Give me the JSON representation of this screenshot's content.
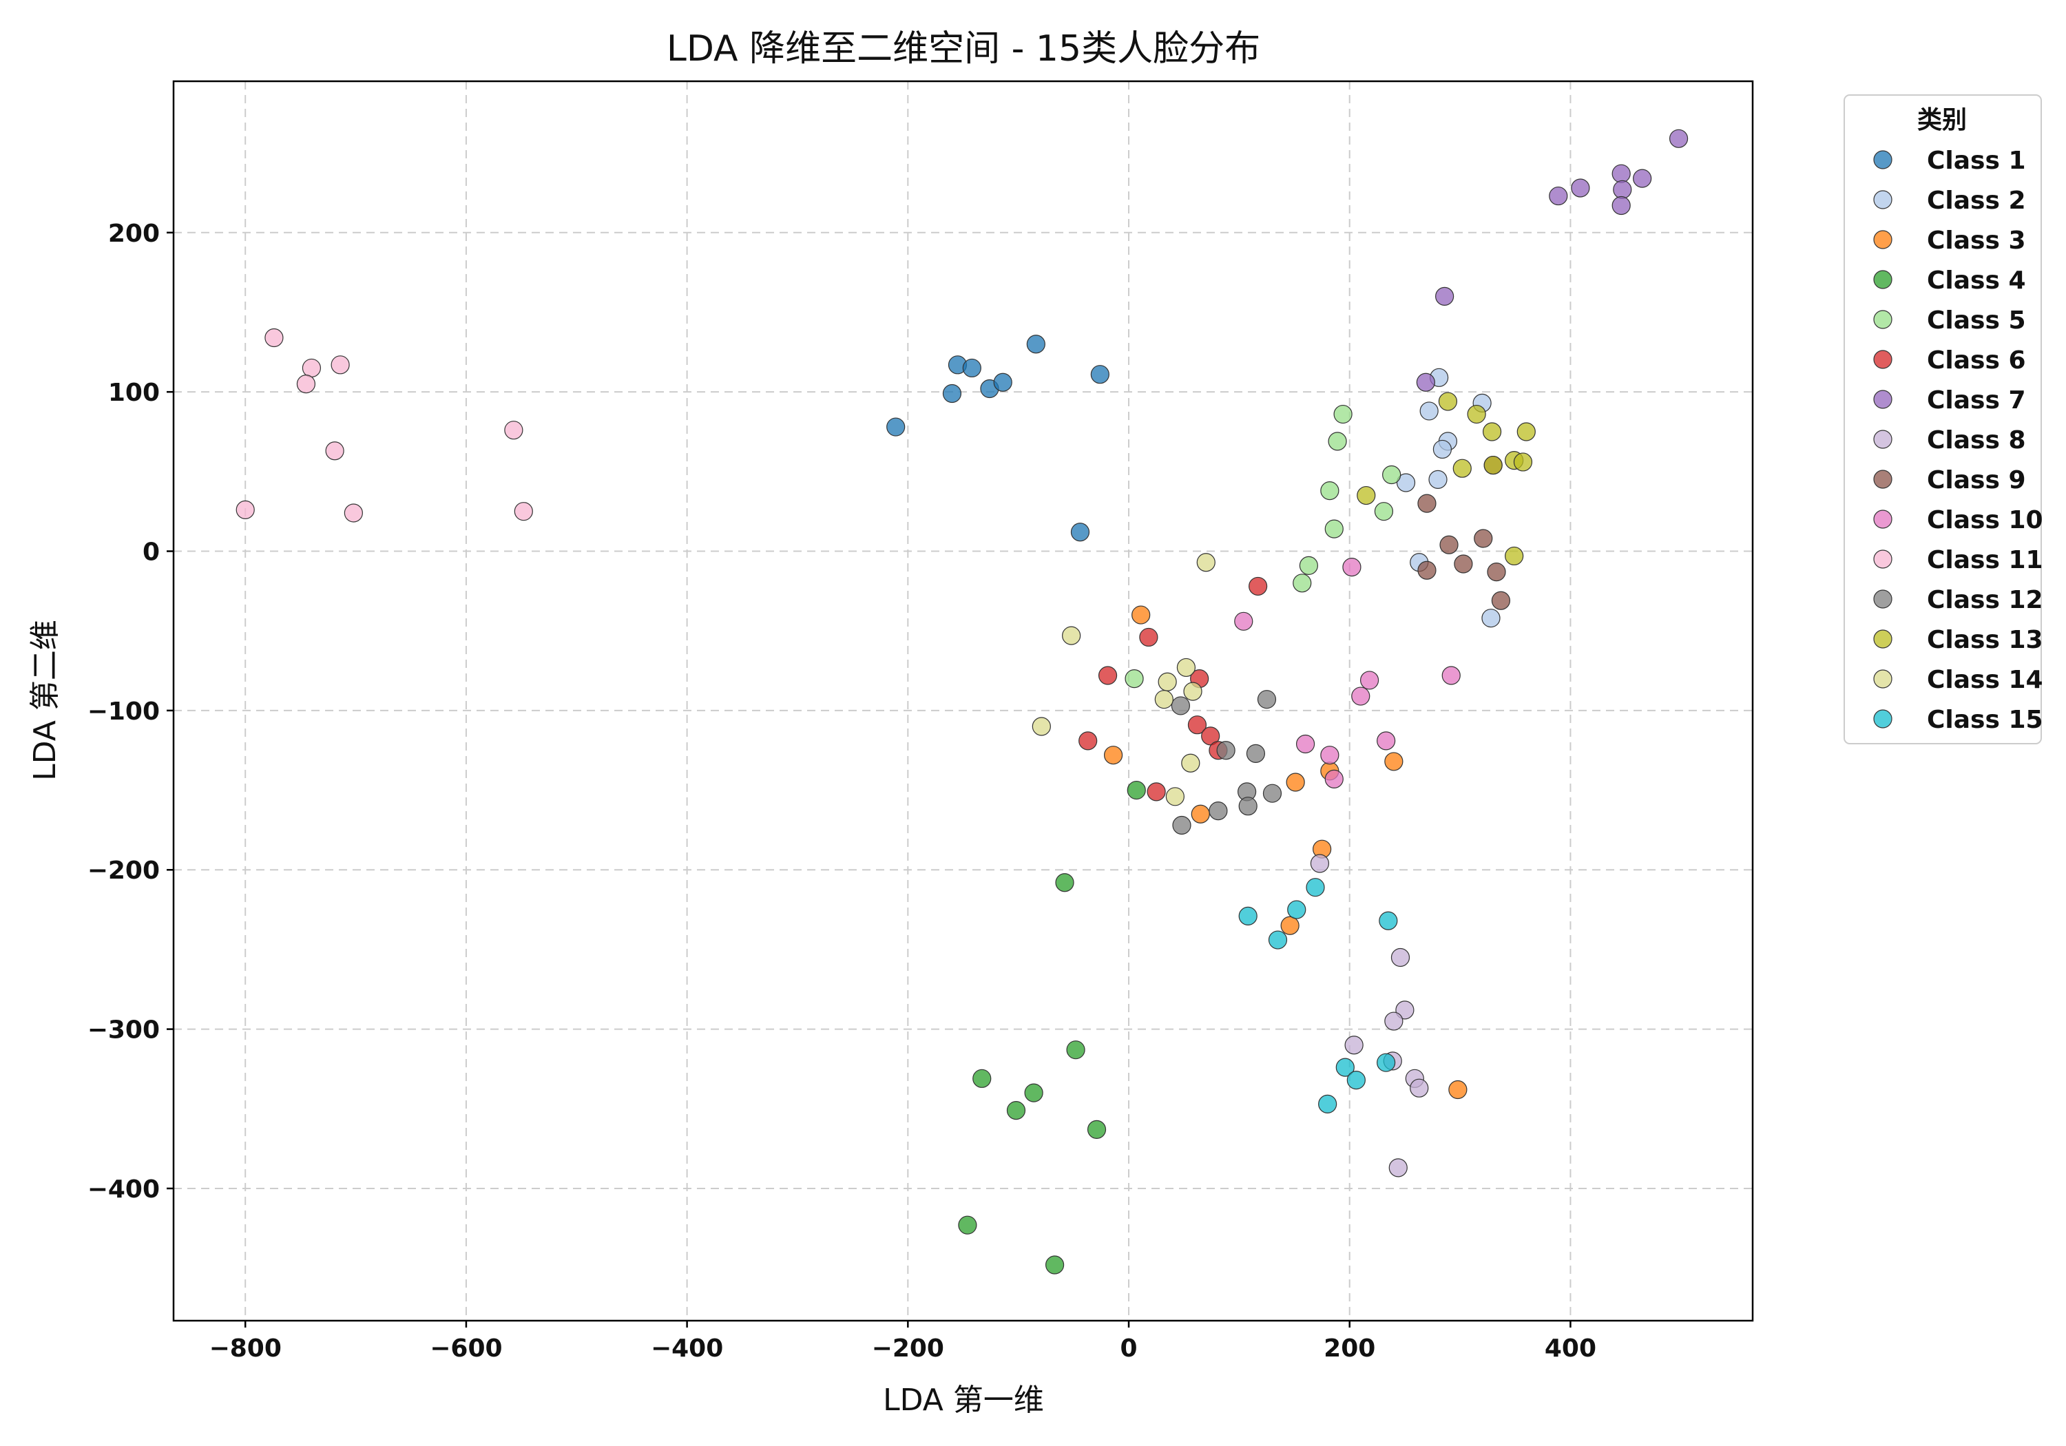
{
  "chart_data": {
    "type": "scatter",
    "title": "LDA 降维至二维空间 - 15类人脸分布",
    "xlabel": "LDA 第一维",
    "ylabel": "LDA 第二维",
    "xlim": [
      -865,
      565
    ],
    "ylim": [
      -483,
      295
    ],
    "xticks": [
      -800,
      -600,
      -400,
      -200,
      0,
      200,
      400
    ],
    "yticks": [
      -400,
      -300,
      -200,
      -100,
      0,
      100,
      200
    ],
    "xtick_labels": [
      "−800",
      "−600",
      "−400",
      "−200",
      "0",
      "200",
      "400"
    ],
    "ytick_labels": [
      "−400",
      "−300",
      "−200",
      "−100",
      "0",
      "100",
      "200"
    ],
    "grid": true,
    "legend_title": "类别",
    "legend_position": "outside-right-top",
    "series": [
      {
        "name": "Class 1",
        "color": "#1f77b4",
        "points": [
          [
            -211,
            78
          ],
          [
            -160,
            99
          ],
          [
            -155,
            117
          ],
          [
            -142,
            115
          ],
          [
            -126,
            102
          ],
          [
            -114,
            106
          ],
          [
            -84,
            130
          ],
          [
            -26,
            111
          ],
          [
            -44,
            12
          ]
        ]
      },
      {
        "name": "Class 2",
        "color": "#aec7e8",
        "points": [
          [
            281,
            109
          ],
          [
            272,
            88
          ],
          [
            320,
            93
          ],
          [
            289,
            69
          ],
          [
            284,
            64
          ],
          [
            251,
            43
          ],
          [
            280,
            45
          ],
          [
            263,
            -7
          ],
          [
            328,
            -42
          ]
        ]
      },
      {
        "name": "Class 3",
        "color": "#ff7f0e",
        "points": [
          [
            11,
            -40
          ],
          [
            -14,
            -128
          ],
          [
            65,
            -165
          ],
          [
            151,
            -145
          ],
          [
            182,
            -138
          ],
          [
            240,
            -132
          ],
          [
            175,
            -187
          ],
          [
            146,
            -235
          ],
          [
            298,
            -338
          ]
        ]
      },
      {
        "name": "Class 4",
        "color": "#2ca02c",
        "points": [
          [
            7,
            -150
          ],
          [
            -58,
            -208
          ],
          [
            -133,
            -331
          ],
          [
            -86,
            -340
          ],
          [
            -102,
            -351
          ],
          [
            -48,
            -313
          ],
          [
            -29,
            -363
          ],
          [
            -146,
            -423
          ],
          [
            -67,
            -448
          ]
        ]
      },
      {
        "name": "Class 5",
        "color": "#98df8a",
        "points": [
          [
            194,
            86
          ],
          [
            189,
            69
          ],
          [
            238,
            48
          ],
          [
            182,
            38
          ],
          [
            231,
            25
          ],
          [
            186,
            14
          ],
          [
            163,
            -9
          ],
          [
            157,
            -20
          ],
          [
            5,
            -80
          ]
        ]
      },
      {
        "name": "Class 6",
        "color": "#d62728",
        "points": [
          [
            117,
            -22
          ],
          [
            18,
            -54
          ],
          [
            -19,
            -78
          ],
          [
            64,
            -80
          ],
          [
            62,
            -109
          ],
          [
            74,
            -116
          ],
          [
            81,
            -125
          ],
          [
            -37,
            -119
          ],
          [
            25,
            -151
          ]
        ]
      },
      {
        "name": "Class 7",
        "color": "#9467bd",
        "points": [
          [
            498,
            259
          ],
          [
            446,
            237
          ],
          [
            465,
            234
          ],
          [
            409,
            228
          ],
          [
            447,
            227
          ],
          [
            389,
            223
          ],
          [
            446,
            217
          ],
          [
            286,
            160
          ],
          [
            269,
            106
          ]
        ]
      },
      {
        "name": "Class 8",
        "color": "#c5b0d5",
        "points": [
          [
            173,
            -196
          ],
          [
            246,
            -255
          ],
          [
            250,
            -288
          ],
          [
            240,
            -295
          ],
          [
            204,
            -310
          ],
          [
            239,
            -320
          ],
          [
            259,
            -331
          ],
          [
            263,
            -337
          ],
          [
            244,
            -387
          ]
        ]
      },
      {
        "name": "Class 9",
        "color": "#8c564b",
        "points": [
          [
            330,
            54
          ],
          [
            270,
            30
          ],
          [
            290,
            4
          ],
          [
            321,
            8
          ],
          [
            270,
            -12
          ],
          [
            303,
            -8
          ],
          [
            333,
            -13
          ],
          [
            337,
            -31
          ]
        ]
      },
      {
        "name": "Class 10",
        "color": "#e377c2",
        "points": [
          [
            202,
            -10
          ],
          [
            104,
            -44
          ],
          [
            218,
            -81
          ],
          [
            210,
            -91
          ],
          [
            292,
            -78
          ],
          [
            160,
            -121
          ],
          [
            182,
            -128
          ],
          [
            186,
            -143
          ],
          [
            233,
            -119
          ]
        ]
      },
      {
        "name": "Class 11",
        "color": "#f7b6d2",
        "points": [
          [
            -774,
            134
          ],
          [
            -740,
            115
          ],
          [
            -714,
            117
          ],
          [
            -745,
            105
          ],
          [
            -557,
            76
          ],
          [
            -719,
            63
          ],
          [
            -800,
            26
          ],
          [
            -702,
            24
          ],
          [
            -548,
            25
          ]
        ]
      },
      {
        "name": "Class 12",
        "color": "#7f7f7f",
        "points": [
          [
            125,
            -93
          ],
          [
            47,
            -97
          ],
          [
            88,
            -125
          ],
          [
            115,
            -127
          ],
          [
            107,
            -151
          ],
          [
            130,
            -152
          ],
          [
            108,
            -160
          ],
          [
            81,
            -163
          ],
          [
            48,
            -172
          ]
        ]
      },
      {
        "name": "Class 13",
        "color": "#bcbd22",
        "points": [
          [
            289,
            94
          ],
          [
            315,
            86
          ],
          [
            329,
            75
          ],
          [
            360,
            75
          ],
          [
            349,
            57
          ],
          [
            357,
            56
          ],
          [
            330,
            54
          ],
          [
            302,
            52
          ],
          [
            215,
            35
          ],
          [
            349,
            -3
          ]
        ]
      },
      {
        "name": "Class 14",
        "color": "#dbdb8d",
        "points": [
          [
            70,
            -7
          ],
          [
            -52,
            -53
          ],
          [
            52,
            -73
          ],
          [
            35,
            -82
          ],
          [
            58,
            -88
          ],
          [
            32,
            -93
          ],
          [
            -79,
            -110
          ],
          [
            56,
            -133
          ],
          [
            42,
            -154
          ]
        ]
      },
      {
        "name": "Class 15",
        "color": "#17becf",
        "points": [
          [
            169,
            -211
          ],
          [
            152,
            -225
          ],
          [
            108,
            -229
          ],
          [
            135,
            -244
          ],
          [
            235,
            -232
          ],
          [
            196,
            -324
          ],
          [
            233,
            -321
          ],
          [
            206,
            -332
          ],
          [
            180,
            -347
          ]
        ]
      }
    ]
  }
}
